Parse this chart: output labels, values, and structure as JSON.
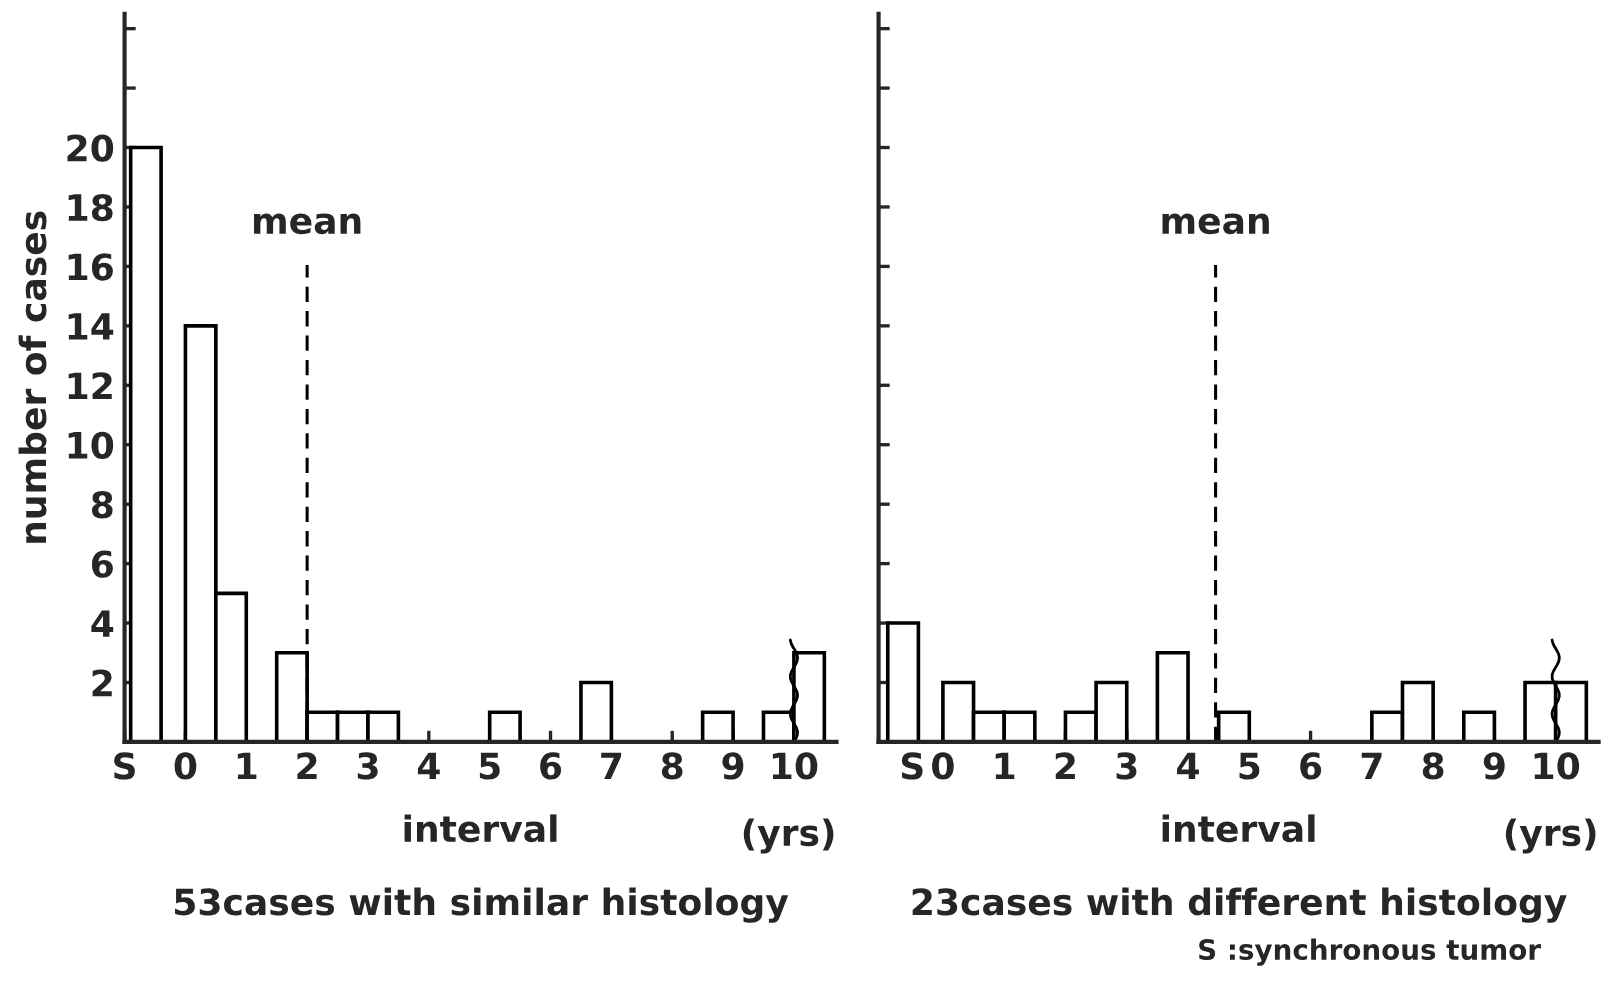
{
  "chart_data": [
    {
      "type": "histogram",
      "title": "53cases with similar histology",
      "xlabel": "interval",
      "ylabel": "number of cases",
      "annotations": [
        "(yrs)"
      ],
      "bins": [
        -0.9,
        -0.4,
        0,
        0.5,
        1,
        1.5,
        2,
        2.5,
        3,
        3.5,
        5,
        5.5,
        6.5,
        7,
        8.5,
        9,
        9.5,
        10,
        10.5
      ],
      "values": [
        20,
        0,
        14,
        5,
        0,
        3,
        1,
        1,
        1,
        0,
        1,
        0,
        2,
        0,
        1,
        0,
        1,
        3
      ],
      "color": "#ffffff",
      "xlim": [
        -1,
        10.7
      ],
      "ylim": [
        0,
        24.5
      ],
      "xticks": [
        {
          "value": -1,
          "label": "S"
        },
        0,
        1,
        2,
        3,
        4,
        5,
        6,
        7,
        8,
        9,
        10
      ],
      "yticks": [
        {
          "value": 0,
          "label": null
        },
        2,
        4,
        6,
        8,
        10,
        12,
        14,
        16,
        18,
        20,
        {
          "value": 22,
          "label": null
        },
        {
          "value": 24,
          "label": null
        }
      ],
      "ref_lines": [
        {
          "axis": "x",
          "value": 2,
          "label": "mean",
          "line_style": "dashed"
        }
      ]
    },
    {
      "type": "histogram",
      "title": "23cases with different histology",
      "xlabel": "interval",
      "annotations": [
        "(yrs)",
        "S :synchronous tumor"
      ],
      "bins": [
        -0.9,
        -0.4,
        0,
        0.5,
        1,
        1.5,
        2,
        2.5,
        3,
        3.5,
        4,
        4.5,
        5,
        7,
        7.5,
        8,
        8.5,
        9,
        9.5,
        10,
        10.5
      ],
      "values": [
        4,
        0,
        2,
        1,
        1,
        0,
        1,
        2,
        0,
        3,
        0,
        1,
        0,
        1,
        2,
        0,
        1,
        0,
        2,
        2
      ],
      "color": "#ffffff",
      "xlim": [
        -1.05,
        10.7
      ],
      "ylim": [
        0,
        24.5
      ],
      "xticks": [
        {
          "value": -0.5,
          "label": "S"
        },
        0,
        1,
        2,
        3,
        4,
        5,
        6,
        7,
        8,
        9,
        10
      ],
      "yticks": [
        0,
        2,
        4,
        6,
        8,
        10,
        12,
        14,
        16,
        18,
        20,
        22,
        24
      ],
      "tick_labels": "x",
      "ref_lines": [
        {
          "axis": "x",
          "value": 4.45,
          "label": "mean",
          "line_style": "dashed"
        }
      ]
    }
  ]
}
